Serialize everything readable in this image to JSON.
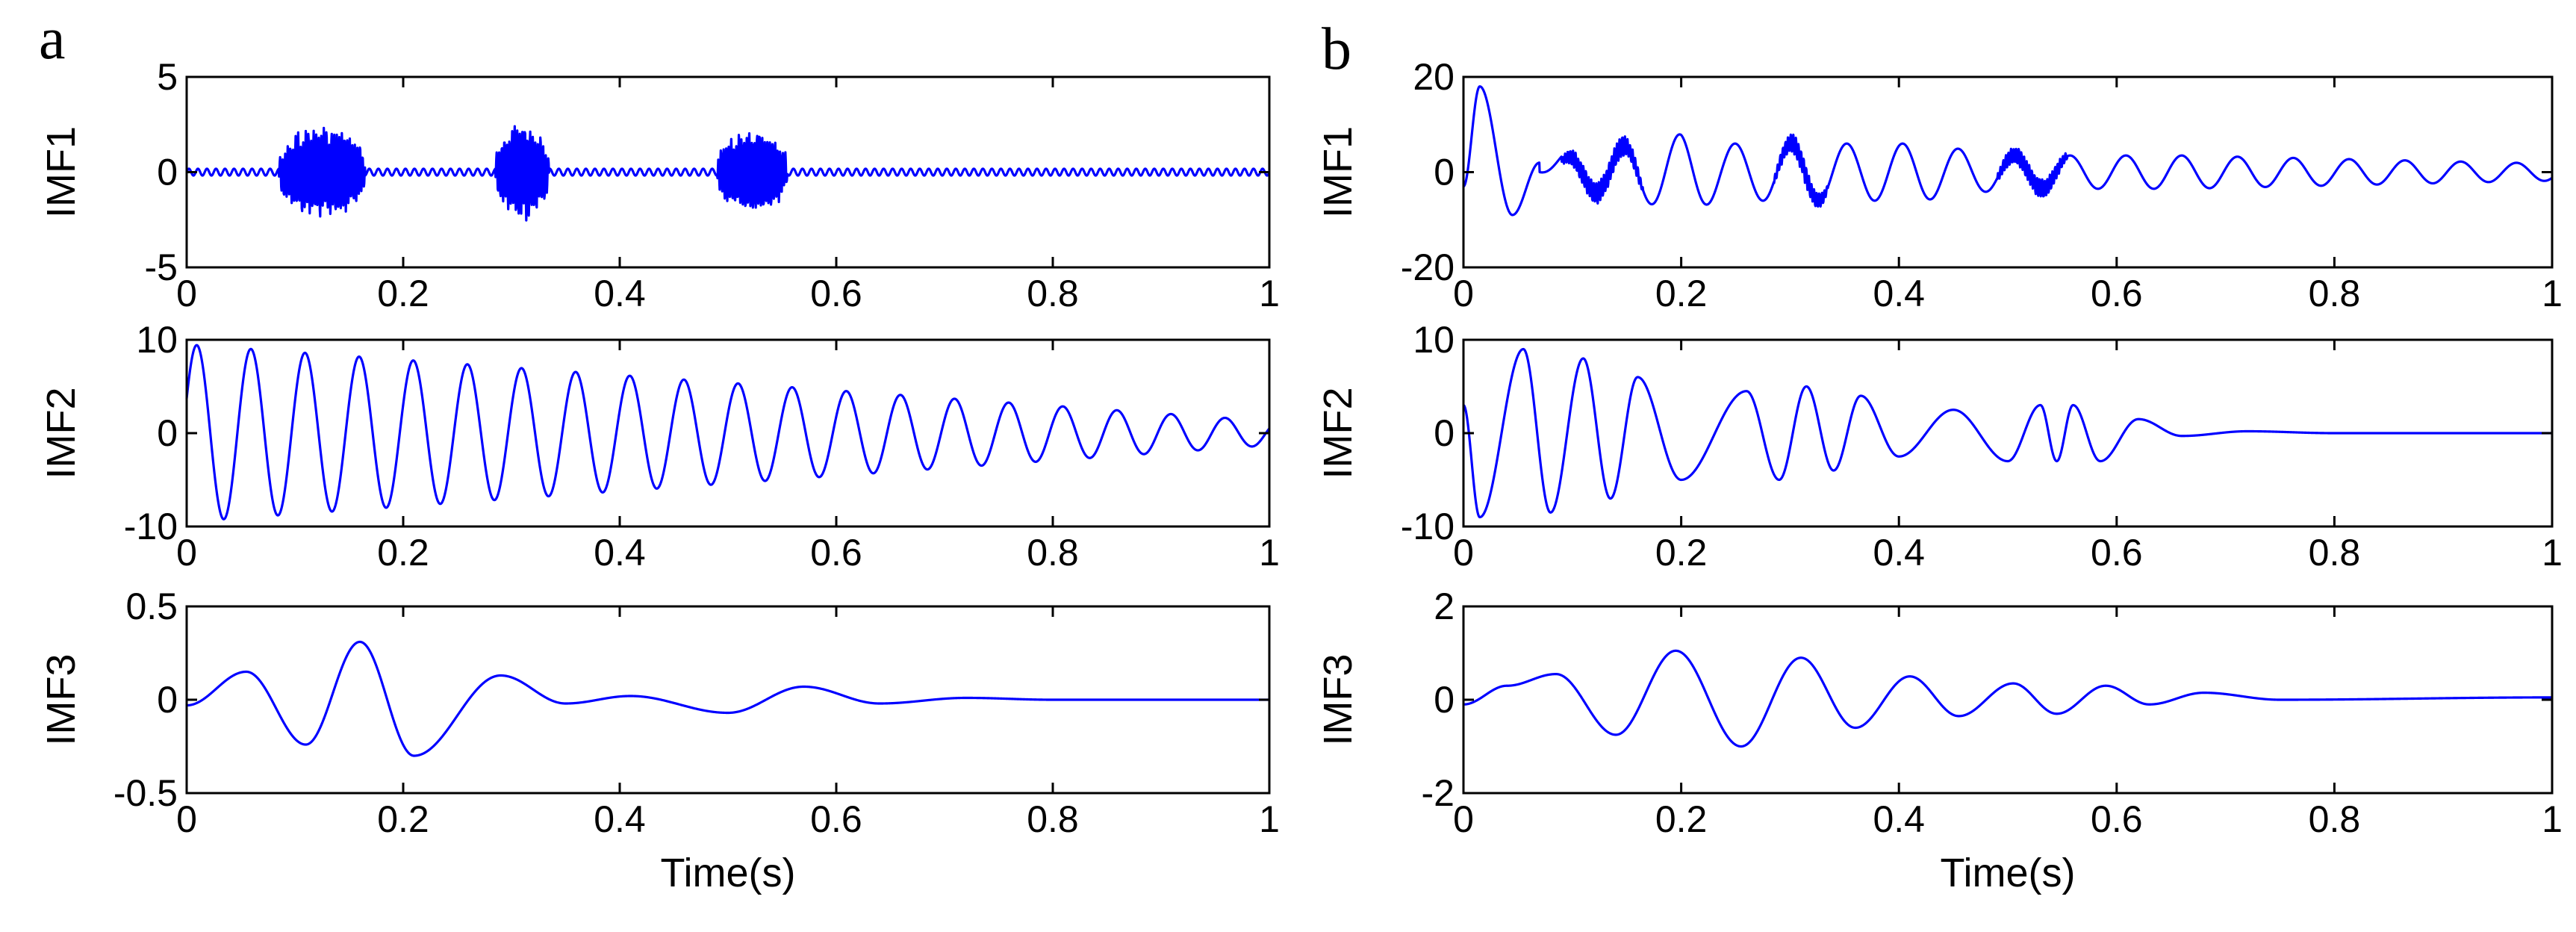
{
  "chart_data": {
    "type": "line",
    "panels": [
      {
        "label": "a",
        "subplots": [
          {
            "ylabel": "IMF1",
            "ylim": [
              -5,
              5
            ],
            "yticks": [
              -5,
              0,
              5
            ],
            "ytick_labels": [
              "-5",
              "0",
              "5"
            ],
            "xlim": [
              0,
              1
            ],
            "xticks": [
              0,
              0.2,
              0.4,
              0.6,
              0.8,
              1
            ],
            "xtick_labels": [
              "0",
              "0.2",
              "0.4",
              "0.6",
              "0.8",
              "1"
            ],
            "xlabel": "",
            "signal": {
              "description_free": true,
              "components": [
                {
                  "kind": "burst",
                  "start": 0.085,
                  "end": 0.165,
                  "amp": 2.1,
                  "freq": 420
                },
                {
                  "kind": "burst",
                  "start": 0.285,
                  "end": 0.335,
                  "amp": 2.2,
                  "freq": 420
                },
                {
                  "kind": "burst",
                  "start": 0.49,
                  "end": 0.555,
                  "amp": 2.0,
                  "freq": 420
                },
                {
                  "kind": "ripple",
                  "amp": 0.18,
                  "freq": 120
                }
              ]
            }
          },
          {
            "ylabel": "IMF2",
            "ylim": [
              -10,
              10
            ],
            "yticks": [
              -10,
              0,
              10
            ],
            "ytick_labels": [
              "-10",
              "0",
              "10"
            ],
            "xlim": [
              0,
              1
            ],
            "xticks": [
              0,
              0.2,
              0.4,
              0.6,
              0.8,
              1
            ],
            "xtick_labels": [
              "0",
              "0.2",
              "0.4",
              "0.6",
              "0.8",
              "1"
            ],
            "xlabel": "",
            "signal": {
              "components": [
                {
                  "kind": "decaying_sine",
                  "amp0": 9.5,
                  "amp1": 1.3,
                  "freq": 20
                }
              ]
            }
          },
          {
            "ylabel": "IMF3",
            "ylim": [
              -0.5,
              0.5
            ],
            "yticks": [
              -0.5,
              0,
              0.5
            ],
            "ytick_labels": [
              "-0.5",
              "0",
              "0.5"
            ],
            "xlim": [
              0,
              1
            ],
            "xticks": [
              0,
              0.2,
              0.4,
              0.6,
              0.8,
              1
            ],
            "xtick_labels": [
              "0",
              "0.2",
              "0.4",
              "0.6",
              "0.8",
              "1"
            ],
            "xlabel": "Time(s)",
            "signal": {
              "components": [
                {
                  "kind": "keypoints",
                  "points": [
                    [
                      0,
                      -0.03
                    ],
                    [
                      0.055,
                      0.15
                    ],
                    [
                      0.11,
                      -0.24
                    ],
                    [
                      0.16,
                      0.31
                    ],
                    [
                      0.21,
                      -0.3
                    ],
                    [
                      0.29,
                      0.13
                    ],
                    [
                      0.35,
                      -0.02
                    ],
                    [
                      0.41,
                      0.02
                    ],
                    [
                      0.5,
                      -0.07
                    ],
                    [
                      0.57,
                      0.07
                    ],
                    [
                      0.64,
                      -0.02
                    ],
                    [
                      0.72,
                      0.01
                    ],
                    [
                      0.8,
                      0.0
                    ],
                    [
                      1.0,
                      0.0
                    ]
                  ]
                }
              ]
            }
          }
        ]
      },
      {
        "label": "b",
        "subplots": [
          {
            "ylabel": "IMF1",
            "ylim": [
              -20,
              20
            ],
            "yticks": [
              -20,
              0,
              20
            ],
            "ytick_labels": [
              "-20",
              "0",
              "20"
            ],
            "xlim": [
              0,
              1
            ],
            "xticks": [
              0,
              0.2,
              0.4,
              0.6,
              0.8,
              1
            ],
            "xtick_labels": [
              "0",
              "0.2",
              "0.4",
              "0.6",
              "0.8",
              "1"
            ],
            "xlabel": "",
            "signal": {
              "components": [
                {
                  "kind": "keypoints_sine",
                  "points": [
                    [
                      0,
                      -3
                    ],
                    [
                      0.015,
                      18
                    ],
                    [
                      0.045,
                      -9
                    ],
                    [
                      0.07,
                      2
                    ],
                    [
                      0.09,
                      1
                    ]
                  ]
                },
                {
                  "kind": "burst",
                  "start": 0.09,
                  "end": 0.165,
                  "amp": 2.2,
                  "freq": 420
                },
                {
                  "kind": "burst",
                  "start": 0.285,
                  "end": 0.335,
                  "amp": 2.0,
                  "freq": 420
                },
                {
                  "kind": "burst",
                  "start": 0.49,
                  "end": 0.555,
                  "amp": 2.0,
                  "freq": 420
                },
                {
                  "kind": "carrier",
                  "start": 0.07,
                  "amp_points": [
                    [
                      0.07,
                      2
                    ],
                    [
                      0.2,
                      8
                    ],
                    [
                      0.24,
                      6
                    ],
                    [
                      0.42,
                      6
                    ],
                    [
                      0.5,
                      3.5
                    ],
                    [
                      0.66,
                      3.5
                    ],
                    [
                      1.0,
                      1.8
                    ]
                  ],
                  "freq": 19.5
                }
              ]
            }
          },
          {
            "ylabel": "IMF2",
            "ylim": [
              -10,
              10
            ],
            "yticks": [
              -10,
              0,
              10
            ],
            "ytick_labels": [
              "-10",
              "0",
              "10"
            ],
            "xlim": [
              0,
              1
            ],
            "xticks": [
              0,
              0.2,
              0.4,
              0.6,
              0.8,
              1
            ],
            "xtick_labels": [
              "0",
              "0.2",
              "0.4",
              "0.6",
              "0.8",
              "1"
            ],
            "xlabel": "",
            "signal": {
              "components": [
                {
                  "kind": "keypoints",
                  "points": [
                    [
                      0,
                      3
                    ],
                    [
                      0.015,
                      -9
                    ],
                    [
                      0.055,
                      9
                    ],
                    [
                      0.08,
                      -8.5
                    ],
                    [
                      0.11,
                      8
                    ],
                    [
                      0.135,
                      -7
                    ],
                    [
                      0.16,
                      6
                    ],
                    [
                      0.2,
                      -5
                    ],
                    [
                      0.26,
                      4.5
                    ],
                    [
                      0.29,
                      -5
                    ],
                    [
                      0.315,
                      5
                    ],
                    [
                      0.34,
                      -4
                    ],
                    [
                      0.365,
                      4
                    ],
                    [
                      0.4,
                      -2.5
                    ],
                    [
                      0.45,
                      2.5
                    ],
                    [
                      0.5,
                      -3
                    ],
                    [
                      0.53,
                      3
                    ],
                    [
                      0.545,
                      -3
                    ],
                    [
                      0.56,
                      3
                    ],
                    [
                      0.585,
                      -3
                    ],
                    [
                      0.62,
                      1.5
                    ],
                    [
                      0.66,
                      -0.3
                    ],
                    [
                      0.72,
                      0.2
                    ],
                    [
                      0.8,
                      0.0
                    ],
                    [
                      1.0,
                      0.0
                    ]
                  ]
                }
              ]
            }
          },
          {
            "ylabel": "IMF3",
            "ylim": [
              -2,
              2
            ],
            "yticks": [
              -2,
              0,
              2
            ],
            "ytick_labels": [
              "-2",
              "0",
              "2"
            ],
            "xlim": [
              0,
              1
            ],
            "xticks": [
              0,
              0.2,
              0.4,
              0.6,
              0.8,
              1
            ],
            "xtick_labels": [
              "0",
              "0.2",
              "0.4",
              "0.6",
              "0.8",
              "1"
            ],
            "xlabel": "Time(s)",
            "signal": {
              "components": [
                {
                  "kind": "keypoints",
                  "points": [
                    [
                      0,
                      -0.1
                    ],
                    [
                      0.04,
                      0.3
                    ],
                    [
                      0.085,
                      0.55
                    ],
                    [
                      0.14,
                      -0.75
                    ],
                    [
                      0.195,
                      1.05
                    ],
                    [
                      0.255,
                      -1.0
                    ],
                    [
                      0.31,
                      0.9
                    ],
                    [
                      0.36,
                      -0.6
                    ],
                    [
                      0.41,
                      0.5
                    ],
                    [
                      0.455,
                      -0.35
                    ],
                    [
                      0.505,
                      0.35
                    ],
                    [
                      0.545,
                      -0.3
                    ],
                    [
                      0.59,
                      0.3
                    ],
                    [
                      0.63,
                      -0.1
                    ],
                    [
                      0.68,
                      0.15
                    ],
                    [
                      0.75,
                      0.0
                    ],
                    [
                      1.0,
                      0.05
                    ]
                  ]
                }
              ]
            }
          }
        ]
      }
    ]
  }
}
